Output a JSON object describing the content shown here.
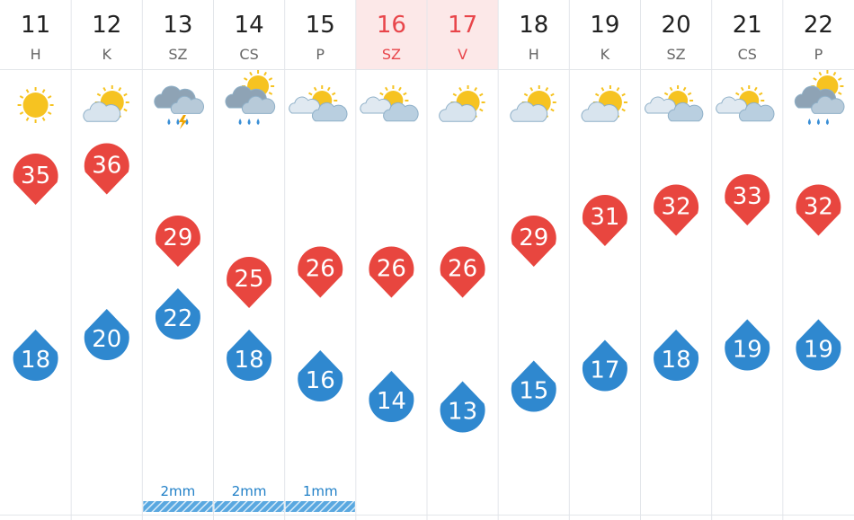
{
  "days": [
    {
      "day": "11",
      "weekday": "H",
      "icon": "sun",
      "weekend": false,
      "high": "35",
      "low": "18",
      "precip": null
    },
    {
      "day": "12",
      "weekday": "K",
      "icon": "partly",
      "weekend": false,
      "high": "36",
      "low": "20",
      "precip": null
    },
    {
      "day": "13",
      "weekday": "SZ",
      "icon": "storm",
      "weekend": false,
      "high": "29",
      "low": "22",
      "precip": "2mm"
    },
    {
      "day": "14",
      "weekday": "CS",
      "icon": "rain",
      "weekend": false,
      "high": "25",
      "low": "18",
      "precip": "2mm"
    },
    {
      "day": "15",
      "weekday": "P",
      "icon": "cloudy-sun",
      "weekend": false,
      "high": "26",
      "low": "16",
      "precip": "1mm"
    },
    {
      "day": "16",
      "weekday": "SZ",
      "icon": "cloudy-sun",
      "weekend": true,
      "high": "26",
      "low": "14",
      "precip": null
    },
    {
      "day": "17",
      "weekday": "V",
      "icon": "partly",
      "weekend": true,
      "high": "26",
      "low": "13",
      "precip": null
    },
    {
      "day": "18",
      "weekday": "H",
      "icon": "partly",
      "weekend": false,
      "high": "29",
      "low": "15",
      "precip": null
    },
    {
      "day": "19",
      "weekday": "K",
      "icon": "partly",
      "weekend": false,
      "high": "31",
      "low": "17",
      "precip": null
    },
    {
      "day": "20",
      "weekday": "SZ",
      "icon": "cloudy-sun",
      "weekend": false,
      "high": "32",
      "low": "18",
      "precip": null
    },
    {
      "day": "21",
      "weekday": "CS",
      "icon": "cloudy-sun",
      "weekend": false,
      "high": "33",
      "low": "19",
      "precip": null
    },
    {
      "day": "22",
      "weekday": "P",
      "icon": "rain",
      "weekend": false,
      "high": "32",
      "low": "19",
      "precip": null
    }
  ]
}
